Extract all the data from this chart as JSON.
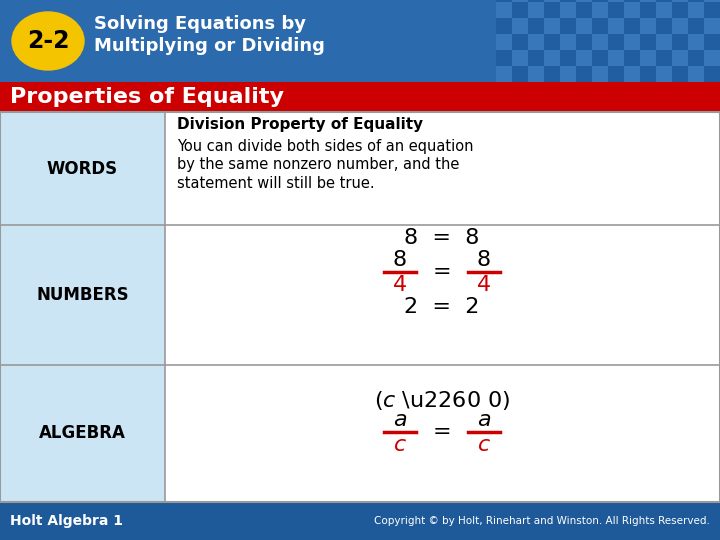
{
  "title_badge": "2-2",
  "title_line1": "Solving Equations by",
  "title_line2": "Multiplying or Dividing",
  "section_title": "Properties of Equality",
  "row_labels": [
    "WORDS",
    "NUMBERS",
    "ALGEBRA"
  ],
  "words_bold": "Division Property of Equality",
  "words_line1": "You can divide both sides of an equation",
  "words_line2": "by the same nonzero number, and the",
  "words_line3": "statement will still be true.",
  "header_bg": "#cc0000",
  "table_bg_left": "#cce5f5",
  "table_bg_right": "#ffffff",
  "badge_bg": "#f5c400",
  "title_bg": "#2a6aad",
  "tile_light": "#3d7fc2",
  "tile_dark": "#1e5a9a",
  "border_color": "#999999",
  "footer_bg": "#1e5a9a",
  "footer_text": "Holt Algebra 1",
  "footer_right": "Copyright © by Holt, Rinehart and Winston. All Rights Reserved.",
  "fraction_color": "#cc0000",
  "fig_width": 7.2,
  "fig_height": 5.4,
  "dpi": 100
}
